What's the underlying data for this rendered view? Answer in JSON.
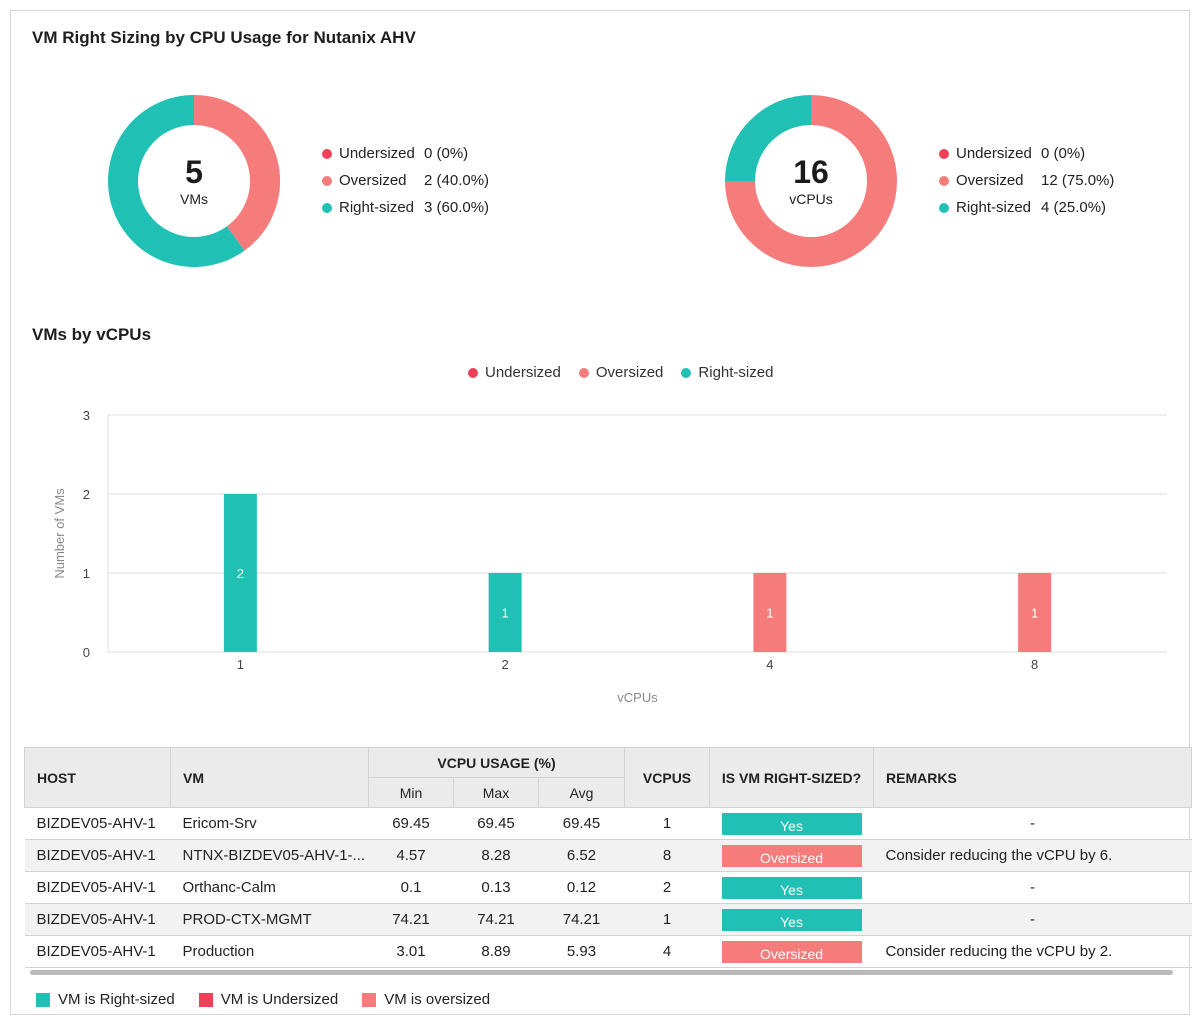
{
  "page_title": "VM Right Sizing by CPU Usage for Nutanix AHV",
  "colors": {
    "undersized": "#ee4058",
    "oversized": "#f67c7c",
    "right_sized": "#21c0b4"
  },
  "donut_vms": {
    "number": "5",
    "unit": "VMs",
    "legend": [
      {
        "name": "Undersized",
        "value": "0 (0%)"
      },
      {
        "name": "Oversized",
        "value": "2 (40.0%)"
      },
      {
        "name": "Right-sized",
        "value": "3 (60.0%)"
      }
    ]
  },
  "donut_vcpus": {
    "number": "16",
    "unit": "vCPUs",
    "legend": [
      {
        "name": "Undersized",
        "value": "0 (0%)"
      },
      {
        "name": "Oversized",
        "value": "12 (75.0%)"
      },
      {
        "name": "Right-sized",
        "value": "4 (25.0%)"
      }
    ]
  },
  "bar_section_title": "VMs by vCPUs",
  "bar_legend": [
    "Undersized",
    "Oversized",
    "Right-sized"
  ],
  "chart_data": [
    {
      "type": "pie",
      "title": "",
      "categories": [
        "Undersized",
        "Oversized",
        "Right-sized"
      ],
      "values": [
        0,
        2,
        3
      ]
    },
    {
      "type": "pie",
      "title": "",
      "categories": [
        "Undersized",
        "Oversized",
        "Right-sized"
      ],
      "values": [
        0,
        12,
        4
      ]
    },
    {
      "type": "bar",
      "title": "",
      "xlabel": "vCPUs",
      "ylabel": "Number of VMs",
      "categories": [
        "1",
        "2",
        "4",
        "8"
      ],
      "ylim": [
        0,
        3
      ],
      "yticks": [
        "0",
        "1",
        "2",
        "3"
      ],
      "series": [
        {
          "name": "Undersized",
          "values": [
            0,
            0,
            0,
            0
          ]
        },
        {
          "name": "Oversized",
          "values": [
            0,
            0,
            1,
            1
          ]
        },
        {
          "name": "Right-sized",
          "values": [
            2,
            1,
            0,
            0
          ]
        }
      ],
      "grid": true,
      "legend": "top"
    }
  ],
  "table": {
    "headers": {
      "host": "HOST",
      "vm": "VM",
      "usage": "VCPU USAGE (%)",
      "min": "Min",
      "max": "Max",
      "avg": "Avg",
      "vcpus": "VCPUS",
      "rightsized": "IS VM RIGHT-SIZED?",
      "remarks": "REMARKS"
    },
    "rows": [
      {
        "host": "BIZDEV05-AHV-1",
        "vm": "Ericom-Srv",
        "min": "69.45",
        "max": "69.45",
        "avg": "69.45",
        "vcpus": "1",
        "status": "Yes",
        "remarks": "-"
      },
      {
        "host": "BIZDEV05-AHV-1",
        "vm": "NTNX-BIZDEV05-AHV-1-...",
        "min": "4.57",
        "max": "8.28",
        "avg": "6.52",
        "vcpus": "8",
        "status": "Oversized",
        "remarks": "Consider reducing the vCPU by 6."
      },
      {
        "host": "BIZDEV05-AHV-1",
        "vm": "Orthanc-Calm",
        "min": "0.1",
        "max": "0.13",
        "avg": "0.12",
        "vcpus": "2",
        "status": "Yes",
        "remarks": "-"
      },
      {
        "host": "BIZDEV05-AHV-1",
        "vm": "PROD-CTX-MGMT",
        "min": "74.21",
        "max": "74.21",
        "avg": "74.21",
        "vcpus": "1",
        "status": "Yes",
        "remarks": "-"
      },
      {
        "host": "BIZDEV05-AHV-1",
        "vm": "Production",
        "min": "3.01",
        "max": "8.89",
        "avg": "5.93",
        "vcpus": "4",
        "status": "Oversized",
        "remarks": "Consider reducing the vCPU by 2."
      }
    ]
  },
  "bottom_legend": [
    {
      "label": "VM is Right-sized",
      "color": "#21c0b4"
    },
    {
      "label": "VM is Undersized",
      "color": "#ee4058"
    },
    {
      "label": "VM is oversized",
      "color": "#f67c7c"
    }
  ]
}
